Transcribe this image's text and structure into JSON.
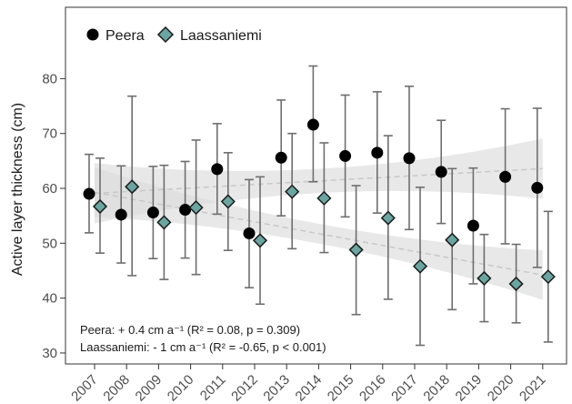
{
  "chart_data": {
    "type": "scatter",
    "title": "",
    "xlabel": "",
    "ylabel": "Active layer thickness (cm)",
    "categories": [
      "2007",
      "2008",
      "2009",
      "2010",
      "2011",
      "2012",
      "2013",
      "2014",
      "2015",
      "2016",
      "2017",
      "2018",
      "2019",
      "2020",
      "2021"
    ],
    "ylim": [
      28,
      93
    ],
    "yticks": [
      30,
      40,
      50,
      60,
      70,
      80
    ],
    "grid": false,
    "legend_position": "top-left",
    "series": [
      {
        "name": "Peera",
        "marker": "circle",
        "color": "#000000",
        "values": [
          59,
          55.2,
          55.6,
          56.1,
          63.5,
          51.8,
          65.6,
          71.6,
          65.9,
          66.5,
          65.5,
          63,
          53.2,
          62.1,
          60.1
        ],
        "error_low": [
          51.9,
          46.4,
          47.2,
          47.3,
          55.3,
          41.9,
          55,
          61.2,
          54.8,
          55.5,
          52.5,
          53.6,
          42.6,
          49.9,
          45.6
        ],
        "error_high": [
          66.2,
          64.1,
          64,
          64.9,
          71.8,
          61.6,
          76.1,
          82.3,
          77,
          77.6,
          78.6,
          72.4,
          63.7,
          74.5,
          74.6
        ],
        "trend_start": 59.1,
        "trend_end": 63.6
      },
      {
        "name": "Laassaniemi",
        "marker": "diamond",
        "color": "#6aa5a2",
        "values": [
          56.7,
          60.3,
          53.8,
          56.5,
          57.6,
          50.5,
          59.4,
          58.2,
          48.8,
          54.6,
          45.8,
          50.6,
          43.6,
          42.6,
          43.9
        ],
        "error_low": [
          48.2,
          44.1,
          43.4,
          44.3,
          48.7,
          38.9,
          49,
          48.3,
          37,
          39.8,
          31.4,
          37.9,
          35.7,
          35.5,
          32
        ],
        "error_high": [
          65.5,
          76.8,
          64.2,
          68.8,
          66.5,
          62.1,
          70,
          68.3,
          60.5,
          69.6,
          60.2,
          63.6,
          51.6,
          49.8,
          55.8
        ],
        "trend_start": 59.3,
        "trend_end": 44.2
      }
    ],
    "annotations": [
      "Peera: + 0.4 cm a⁻¹ (R² = 0.08, p = 0.309)",
      "Laassaniemi: - 1 cm a⁻¹ (R² = -0.65, p < 0.001)"
    ]
  }
}
